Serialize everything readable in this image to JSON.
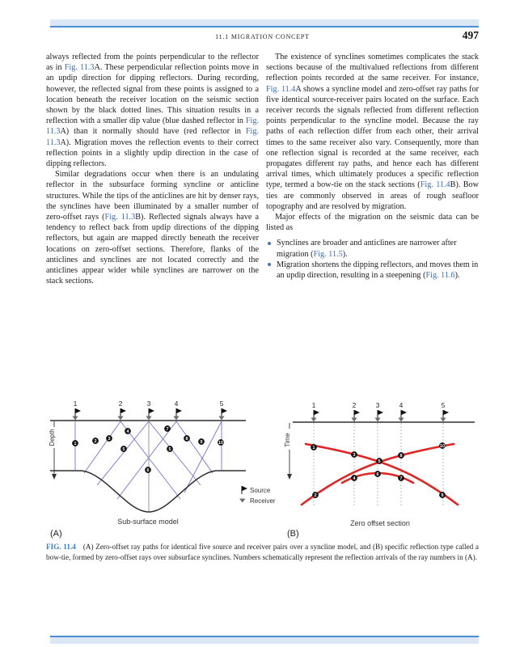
{
  "page": {
    "running_head": "11.1 MIGRATION CONCEPT",
    "page_number": "497"
  },
  "colors": {
    "rule_bar_fill": "#dce7f5",
    "rule_bar_line": "#4a8fd4",
    "figure_link": "#3a6cb8",
    "caption_label": "#3f7dc3",
    "ray_blue": "#7272d8",
    "bowtie_red": "#e32222"
  },
  "columns": {
    "left": {
      "p1": [
        {
          "t": "always reflected from the points perpendicular to the reflector as in ",
          "link": false
        },
        {
          "t": "Fig. 11.3",
          "link": true
        },
        {
          "t": "A. These perpendicular reflection points move in an updip direction for dipping reflectors. During recording, however, the reflected signal from these points is assigned to a location beneath the receiver location on the seismic section shown by the black dotted lines. This situation results in a reflection with a smaller dip value (blue dashed reflector in ",
          "link": false
        },
        {
          "t": "Fig. 11.3",
          "link": true
        },
        {
          "t": "A) than it normally should have (red reflector in ",
          "link": false
        },
        {
          "t": "Fig. 11.3",
          "link": true
        },
        {
          "t": "A). Migration moves the reflection events to their correct reflection points in a slightly updip direction in the case of dipping reflectors.",
          "link": false
        }
      ],
      "p2": [
        {
          "t": "Similar degradations occur when there is an undulating reflector in the subsurface forming syncline or anticline structures. While the tips of the anticlines are hit by denser rays, the synclines have been illuminated by a smaller number of zero-offset rays (",
          "link": false
        },
        {
          "t": "Fig. 11.3",
          "link": true
        },
        {
          "t": "B). Reflected signals always have a tendency to reflect back from updip directions of the dipping reflectors, but again are mapped directly beneath the receiver locations on zero-offset sections. Therefore, flanks of the anticlines and synclines are not located correctly and the anticlines appear wider while synclines are narrower on the stack sections.",
          "link": false
        }
      ]
    },
    "right": {
      "p1": [
        {
          "t": "The existence of synclines sometimes complicates the stack sections because of the multivalued reflections from different reflection points recorded at the same receiver. For instance, ",
          "link": false
        },
        {
          "t": "Fig. 11.4",
          "link": true
        },
        {
          "t": "A shows a syncline model and zero-offset ray paths for five identical source-receiver pairs located on the surface. Each receiver records the signals reflected from different reflection points perpendicular to the syncline model. Because the ray paths of each reflection differ from each other, their arrival times to the same receiver also vary. Consequently, more than one reflection signal is recorded at the same receiver, each propagates different ray paths, and hence each has different arrival times, which ultimately produces a specific reflection type, termed a bow-tie on the stack sections (",
          "link": false
        },
        {
          "t": "Fig. 11.4",
          "link": true
        },
        {
          "t": "B). Bow ties are commonly observed in areas of rough seafloor topography and are resolved by migration.",
          "link": false
        }
      ],
      "p2": "Major effects of the migration on the seismic data can be listed as",
      "bullets": [
        [
          {
            "t": "Synclines are broader and anticlines are narrower after migration (",
            "link": false
          },
          {
            "t": "Fig. 11.5",
            "link": true
          },
          {
            "t": ").",
            "link": false
          }
        ],
        [
          {
            "t": "Migration shortens the dipping reflectors, and moves them in an updip direction, resulting in a steepening (",
            "link": false
          },
          {
            "t": "Fig. 11.6",
            "link": true
          },
          {
            "t": ").",
            "link": false
          }
        ]
      ]
    }
  },
  "figure": {
    "caption_label": "FIG. 11.4",
    "caption_text": "(A) Zero-offset ray paths for identical five source and receiver pairs over a syncline model, and (B) specific reflection type called a bow-tie, formed by zero-offset rays over subsurface synclines. Numbers schematically represent the reflection arrivals of the ray numbers in (A).",
    "legend": {
      "source_label": "Source",
      "receiver_label": "Receiver"
    },
    "panelA": {
      "label": "(A)",
      "axis_label": "Depth",
      "title": "Sub-surface model",
      "stations": [
        "1",
        "2",
        "3",
        "4",
        "5"
      ],
      "markers": [
        "1",
        "2",
        "3",
        "4",
        "5",
        "5",
        "6",
        "7",
        "8",
        "9",
        "10"
      ]
    },
    "panelB": {
      "label": "(B)",
      "axis_label": "Time",
      "title": "Zero offset section",
      "stations": [
        "1",
        "2",
        "3",
        "4",
        "5"
      ],
      "markers": [
        "1",
        "2",
        "3",
        "4",
        "5",
        "6",
        "7",
        "8",
        "9",
        "10"
      ]
    }
  }
}
